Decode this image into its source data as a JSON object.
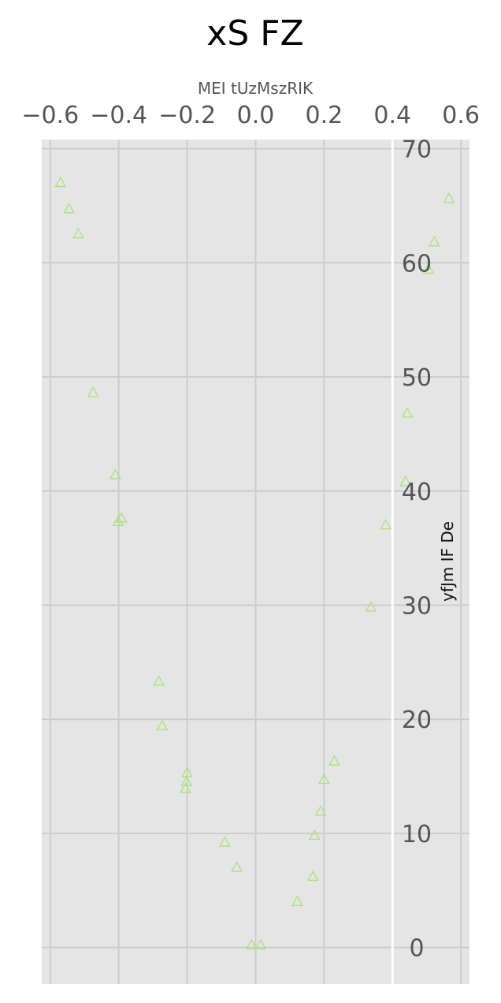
{
  "chart_data": {
    "type": "scatter",
    "title": "xS FZ",
    "xlabel": "MEI tUzMszRIK",
    "ylabel": "yfJm IF De",
    "xlim": [
      -0.625,
      0.625
    ],
    "ylim": [
      -3.2,
      70.8
    ],
    "x_ticks": [
      -0.6,
      -0.4,
      -0.2,
      0.0,
      0.2,
      0.4,
      0.6
    ],
    "x_tick_labels": [
      "−0.6",
      "−0.4",
      "−0.2",
      "0.0",
      "0.2",
      "0.4",
      "0.6"
    ],
    "y_ticks": [
      0,
      10,
      20,
      30,
      40,
      50,
      60,
      70
    ],
    "y_tick_labels": [
      "0",
      "10",
      "20",
      "30",
      "40",
      "50",
      "60",
      "70"
    ],
    "vline_x": 0.4,
    "grid": true,
    "marker": "triangle-open",
    "marker_color": "#a9e27a",
    "background_color": "#e5e5e5",
    "series": [
      {
        "name": "points",
        "points": [
          {
            "x": -0.57,
            "y": 67.0
          },
          {
            "x": -0.545,
            "y": 64.7
          },
          {
            "x": -0.518,
            "y": 62.5
          },
          {
            "x": -0.475,
            "y": 48.6
          },
          {
            "x": -0.41,
            "y": 41.4
          },
          {
            "x": -0.392,
            "y": 37.6
          },
          {
            "x": -0.402,
            "y": 37.3
          },
          {
            "x": -0.283,
            "y": 23.3
          },
          {
            "x": -0.273,
            "y": 19.4
          },
          {
            "x": -0.2,
            "y": 15.3
          },
          {
            "x": -0.202,
            "y": 14.5
          },
          {
            "x": -0.205,
            "y": 13.9
          },
          {
            "x": -0.09,
            "y": 9.2
          },
          {
            "x": -0.055,
            "y": 7.0
          },
          {
            "x": -0.012,
            "y": 0.2
          },
          {
            "x": 0.015,
            "y": 0.2
          },
          {
            "x": 0.122,
            "y": 4.0
          },
          {
            "x": 0.168,
            "y": 6.2
          },
          {
            "x": 0.172,
            "y": 9.8
          },
          {
            "x": 0.19,
            "y": 11.9
          },
          {
            "x": 0.2,
            "y": 14.7
          },
          {
            "x": 0.23,
            "y": 16.3
          },
          {
            "x": 0.337,
            "y": 29.8
          },
          {
            "x": 0.38,
            "y": 37.0
          },
          {
            "x": 0.438,
            "y": 40.8
          },
          {
            "x": 0.443,
            "y": 46.8
          },
          {
            "x": 0.505,
            "y": 59.4
          },
          {
            "x": 0.522,
            "y": 61.8
          },
          {
            "x": 0.565,
            "y": 65.6
          }
        ]
      }
    ]
  }
}
